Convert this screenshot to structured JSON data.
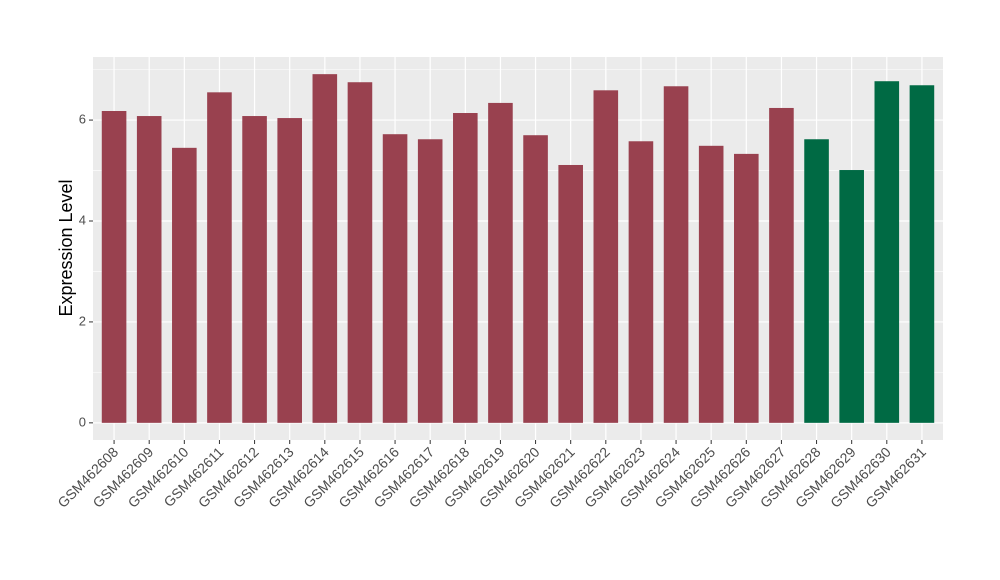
{
  "chart_data": {
    "type": "bar",
    "y_label": "Expression Level",
    "categories": [
      "GSM462608",
      "GSM462609",
      "GSM462610",
      "GSM462611",
      "GSM462612",
      "GSM462613",
      "GSM462614",
      "GSM462615",
      "GSM462616",
      "GSM462617",
      "GSM462618",
      "GSM462619",
      "GSM462620",
      "GSM462621",
      "GSM462622",
      "GSM462623",
      "GSM462624",
      "GSM462625",
      "GSM462626",
      "GSM462627",
      "GSM462628",
      "GSM462629",
      "GSM462630",
      "GSM462631"
    ],
    "values": [
      6.18,
      6.08,
      5.45,
      6.55,
      6.08,
      6.04,
      6.91,
      6.75,
      5.72,
      5.62,
      6.14,
      6.34,
      5.7,
      5.11,
      6.59,
      5.58,
      6.67,
      5.49,
      5.33,
      6.24,
      5.62,
      5.01,
      6.77,
      6.69
    ],
    "colors": [
      "#99414f",
      "#99414f",
      "#99414f",
      "#99414f",
      "#99414f",
      "#99414f",
      "#99414f",
      "#99414f",
      "#99414f",
      "#99414f",
      "#99414f",
      "#99414f",
      "#99414f",
      "#99414f",
      "#99414f",
      "#99414f",
      "#99414f",
      "#99414f",
      "#99414f",
      "#99414f",
      "#006a44",
      "#006a44",
      "#006a44",
      "#006a44"
    ],
    "ylim": [
      -0.34,
      7.25
    ],
    "yticks": [
      0,
      2,
      4,
      6
    ],
    "yminor": [
      1,
      3,
      5,
      7
    ],
    "grid": true
  }
}
